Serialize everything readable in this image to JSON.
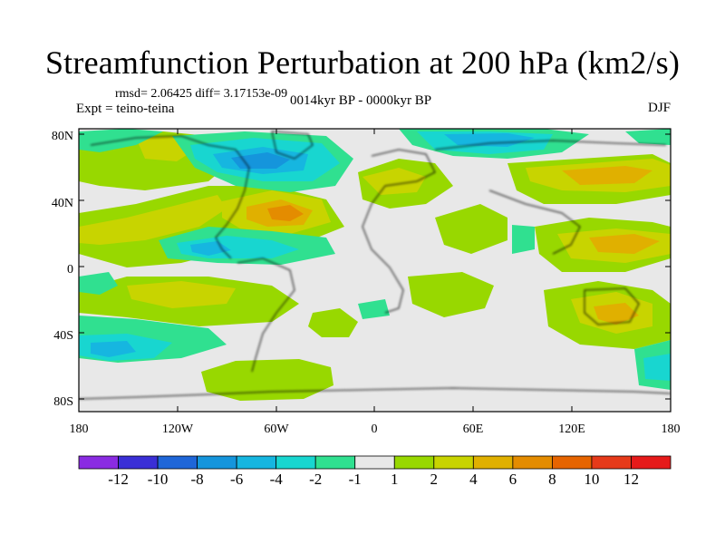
{
  "title": "Streamfunction Perturbation at 200 hPa (km2/s)",
  "stats": "rmsd= 2.06425 diff= 3.17153e-09",
  "experiment": "Expt = teino-teina",
  "period": "0014kyr BP - 0000kyr BP",
  "season": "DJF",
  "lat_ticks": [
    "80N",
    "40N",
    "0",
    "40S",
    "80S"
  ],
  "lon_ticks": [
    "180",
    "120W",
    "60W",
    "0",
    "60E",
    "120E",
    "180"
  ],
  "colorbar": {
    "labels": [
      "-12",
      "-10",
      "-8",
      "-6",
      "-4",
      "-2",
      "-1",
      "1",
      "2",
      "4",
      "6",
      "8",
      "10",
      "12"
    ],
    "colors": [
      "#8a2be2",
      "#3a2fd6",
      "#1f66d8",
      "#1595dc",
      "#16b6e0",
      "#18d6d0",
      "#30e090",
      "#e8e8e8",
      "#98d800",
      "#c8d400",
      "#e0b000",
      "#e48c00",
      "#e66400",
      "#e63a1a",
      "#e61a1a"
    ]
  },
  "colors": {
    "land_outline": "#000000",
    "background": "#e8e8e8"
  }
}
